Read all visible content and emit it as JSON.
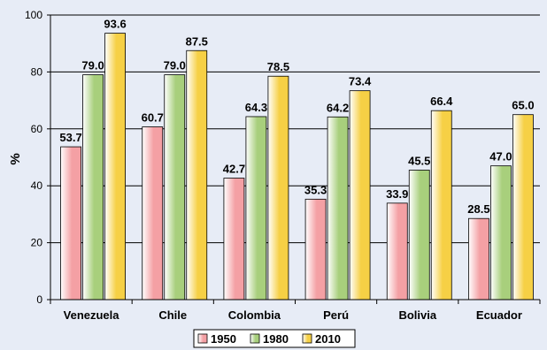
{
  "chart_data": {
    "type": "bar",
    "categories": [
      "Venezuela",
      "Chile",
      "Colombia",
      "Perú",
      "Bolivia",
      "Ecuador"
    ],
    "series": [
      {
        "name": "1950",
        "values": [
          53.7,
          60.7,
          42.7,
          35.3,
          33.9,
          28.5
        ],
        "color": "#f4a0a4"
      },
      {
        "name": "1980",
        "values": [
          79.0,
          79.0,
          64.3,
          64.2,
          45.5,
          47.0
        ],
        "color": "#a8cf7c"
      },
      {
        "name": "2010",
        "values": [
          93.6,
          87.5,
          78.5,
          73.4,
          66.4,
          65.0
        ],
        "color": "#f6d045"
      }
    ],
    "ylabel": "%",
    "ylim": [
      0,
      100
    ],
    "yticks": [
      0,
      20,
      40,
      60,
      80,
      100
    ],
    "grid": true,
    "legend": "bottom",
    "background": "#e7ecf6"
  }
}
